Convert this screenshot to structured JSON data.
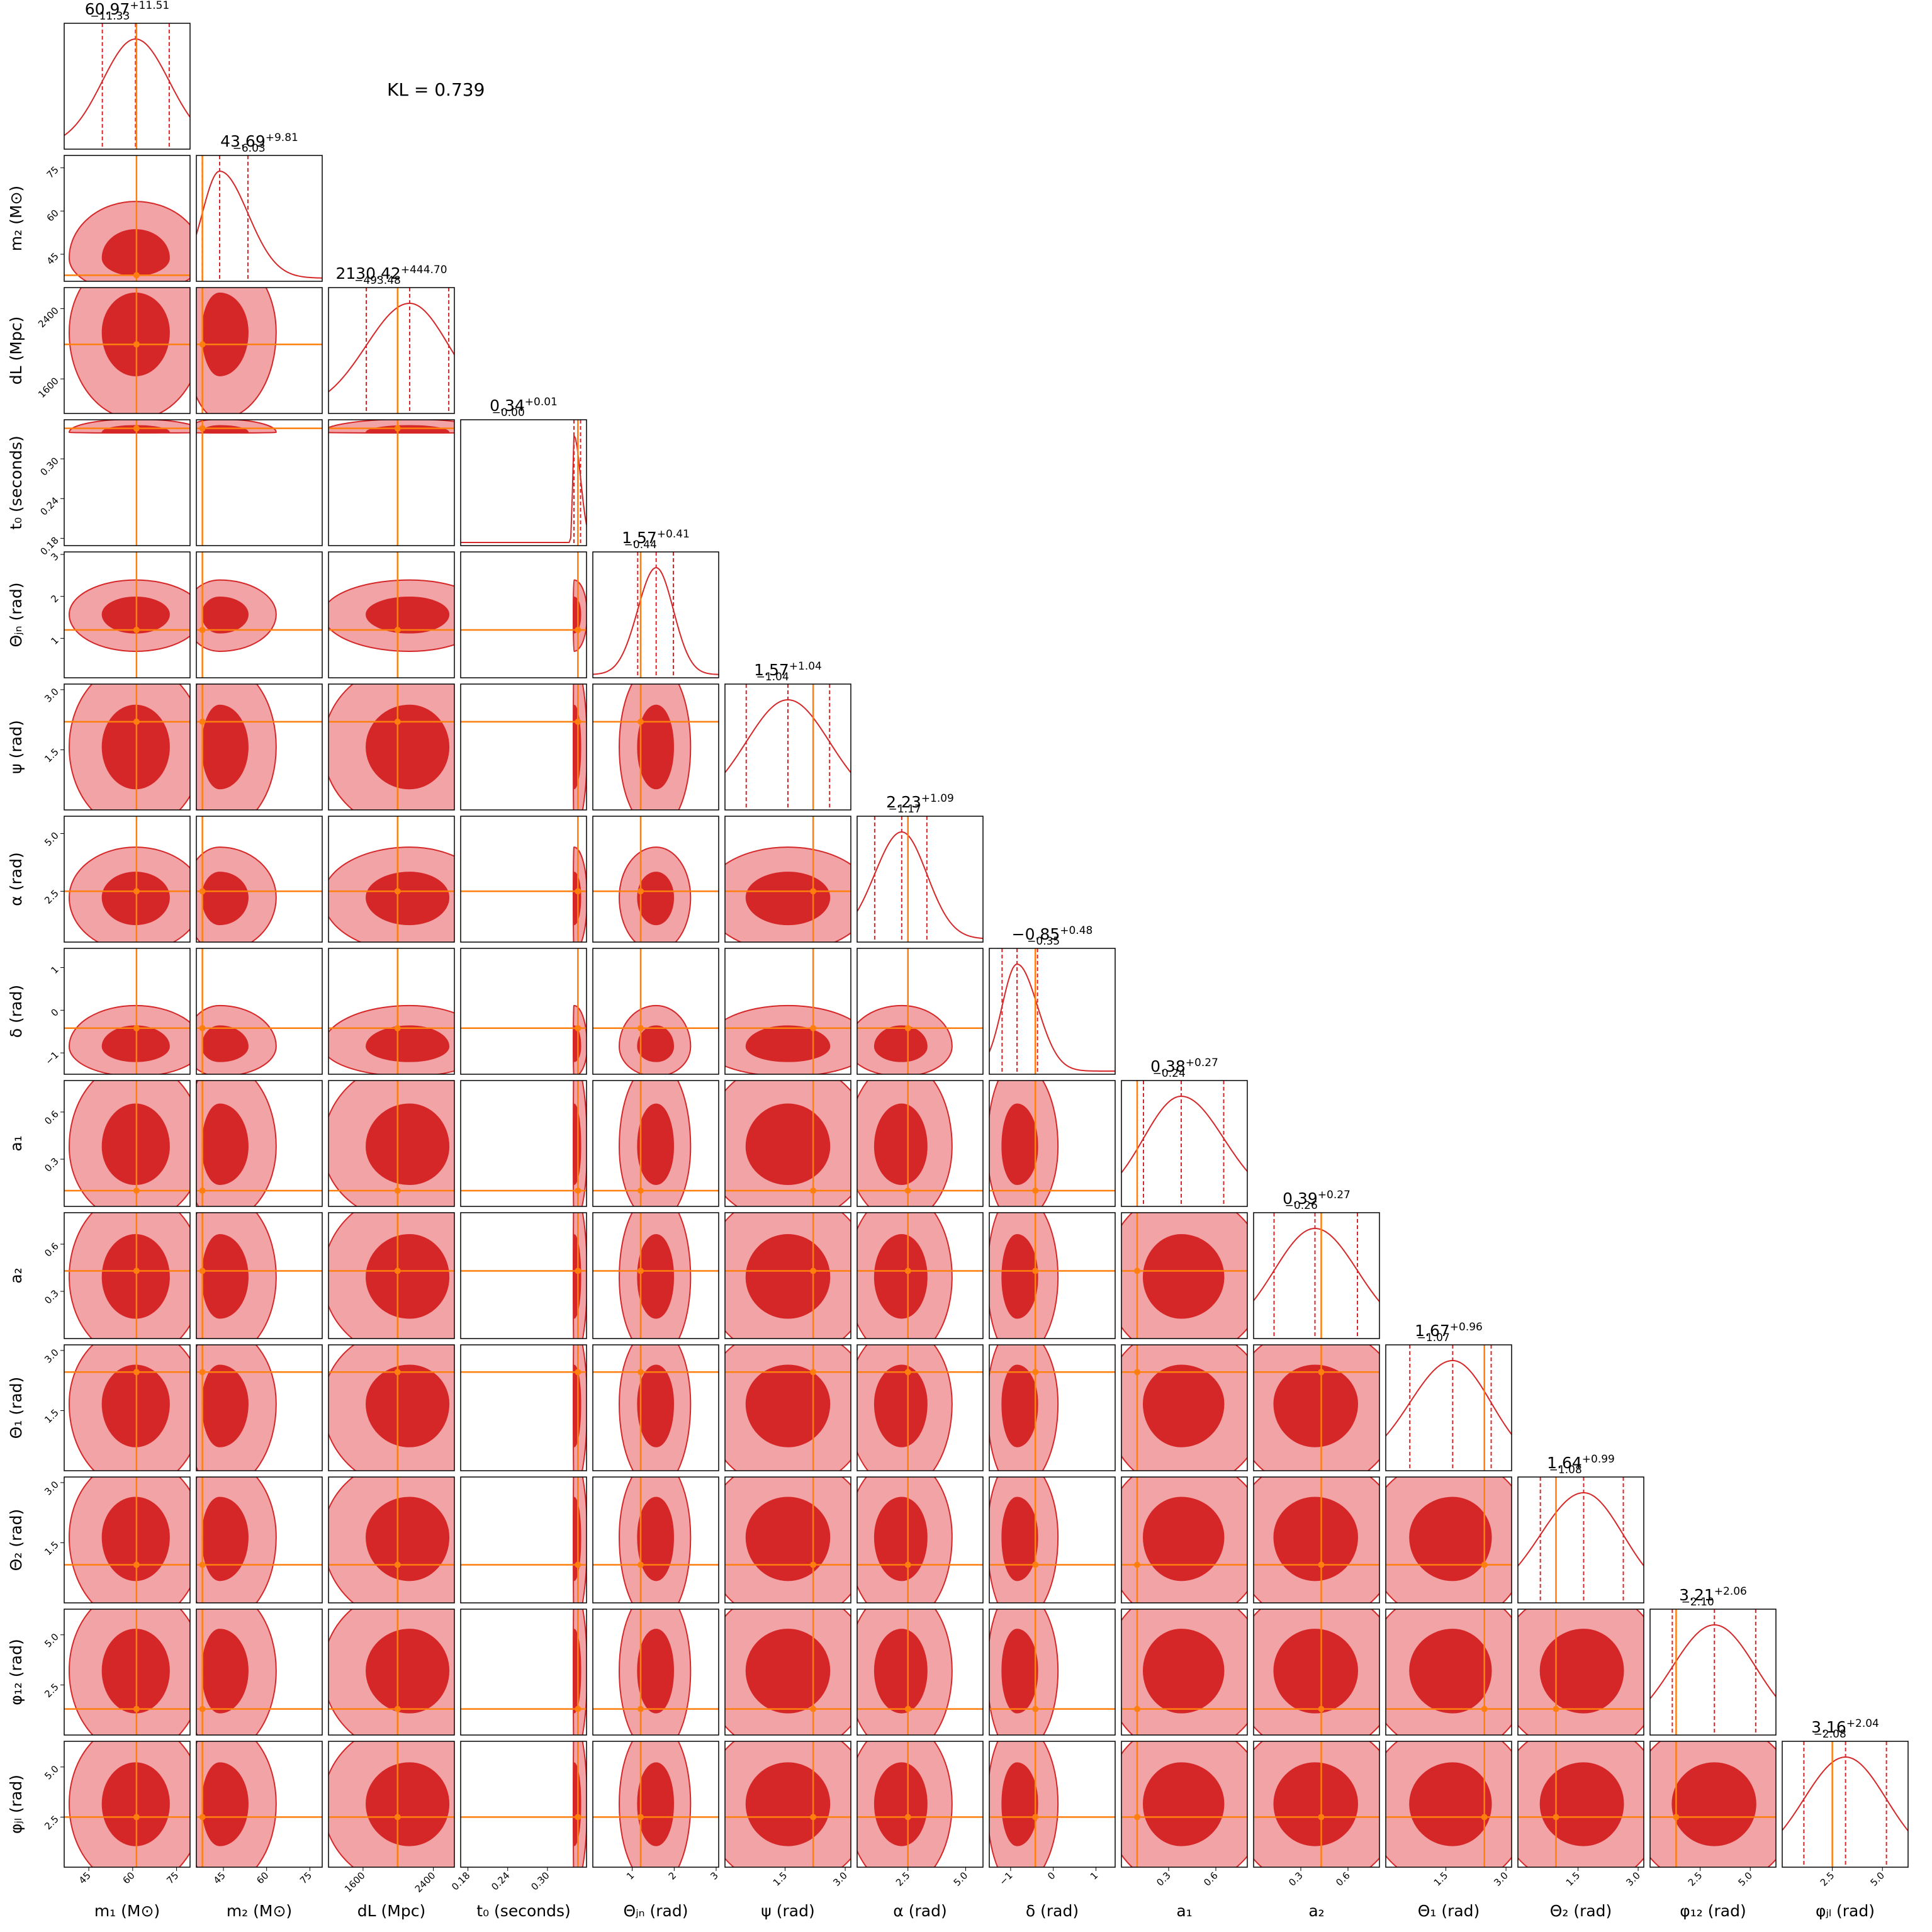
{
  "chart_data": {
    "type": "corner",
    "annotation": "KL = 0.739",
    "colors": {
      "posterior": "#d62728",
      "posterior_outer": "#f2a3a5",
      "truth": "#ff7f0e"
    },
    "parameters": [
      {
        "label": "m₁ (M⊙)",
        "lim": [
          36.6,
          79.6
        ],
        "ticks": [
          45,
          60,
          75
        ],
        "truth": 61.3,
        "median": {
          "value": 60.97,
          "label": "60.97"
        },
        "upper": {
          "value": 11.51,
          "label": "+11.51"
        },
        "lower": {
          "value": 11.33,
          "label": "−11.33"
        }
      },
      {
        "label": "m₂ (M⊙)",
        "lim": [
          35.6,
          79.3
        ],
        "ticks": [
          45,
          60,
          75
        ],
        "truth": 37.7,
        "median": {
          "value": 43.69,
          "label": "43.69"
        },
        "upper": {
          "value": 9.81,
          "label": "+9.81"
        },
        "lower": {
          "value": 6.03,
          "label": "−6.03"
        }
      },
      {
        "label": "dL (Mpc)",
        "lim": [
          1207,
          2639
        ],
        "ticks": [
          1600,
          2400
        ],
        "truth": 1993,
        "median": {
          "value": 2130.42,
          "label": "2130.42"
        },
        "upper": {
          "value": 444.7,
          "label": "+444.70"
        },
        "lower": {
          "value": 493.48,
          "label": "−493.48"
        }
      },
      {
        "label": "t₀ (seconds)",
        "lim": [
          0.169,
          0.359
        ],
        "ticks": [
          0.18,
          0.24,
          {
            "value": 0.3,
            "label": "0.30"
          }
        ],
        "truth": 0.346,
        "median": {
          "value": 0.34,
          "label": "0.34"
        },
        "upper": {
          "value": 0.01,
          "label": "+0.01"
        },
        "lower": {
          "value": 0,
          "label": "−0.00"
        }
      },
      {
        "label": "Θⱼₙ (rad)",
        "lim": [
          0.06,
          3.06
        ],
        "ticks": [
          1,
          2,
          3
        ],
        "truth": 1.2,
        "median": {
          "value": 1.57,
          "label": "1.57"
        },
        "upper": {
          "value": 0.41,
          "label": "+0.41"
        },
        "lower": {
          "value": 0.44,
          "label": "−0.44"
        }
      },
      {
        "label": "ψ (rad)",
        "lim": [
          0,
          3.14
        ],
        "ticks": [
          1.5,
          {
            "value": 3,
            "label": "3.0"
          }
        ],
        "truth": 2.2,
        "median": {
          "value": 1.57,
          "label": "1.57"
        },
        "upper": {
          "value": 1.04,
          "label": "+1.04"
        },
        "lower": {
          "value": 1.04,
          "label": "−1.04"
        }
      },
      {
        "label": "α (rad)",
        "lim": [
          0.3,
          5.75
        ],
        "ticks": [
          2.5,
          {
            "value": 5,
            "label": "5.0"
          }
        ],
        "truth": 2.5,
        "median": {
          "value": 2.23,
          "label": "2.23"
        },
        "upper": {
          "value": 1.09,
          "label": "+1.09"
        },
        "lower": {
          "value": 1.17,
          "label": "−1.17"
        }
      },
      {
        "label": "δ (rad)",
        "lim": [
          -1.5,
          1.45
        ],
        "ticks": [
          {
            "value": -1,
            "label": "−1"
          },
          0,
          1
        ],
        "truth": -0.42,
        "median": {
          "value": -0.85,
          "label": "−0.85"
        },
        "upper": {
          "value": 0.48,
          "label": "+0.48"
        },
        "lower": {
          "value": 0.35,
          "label": "−0.35"
        }
      },
      {
        "label": "a₁",
        "lim": [
          0,
          0.8
        ],
        "ticks": [
          0.3,
          0.6
        ],
        "truth": 0.1,
        "median": {
          "value": 0.38,
          "label": "0.38"
        },
        "upper": {
          "value": 0.27,
          "label": "+0.27"
        },
        "lower": {
          "value": 0.24,
          "label": "−0.24"
        }
      },
      {
        "label": "a₂",
        "lim": [
          0,
          0.8
        ],
        "ticks": [
          0.3,
          0.6
        ],
        "truth": 0.43,
        "median": {
          "value": 0.39,
          "label": "0.39"
        },
        "upper": {
          "value": 0.27,
          "label": "+0.27"
        },
        "lower": {
          "value": 0.26,
          "label": "−0.26"
        }
      },
      {
        "label": "Θ₁ (rad)",
        "lim": [
          0,
          3.14
        ],
        "ticks": [
          1.5,
          {
            "value": 3,
            "label": "3.0"
          }
        ],
        "truth": 2.46,
        "median": {
          "value": 1.67,
          "label": "1.67"
        },
        "upper": {
          "value": 0.96,
          "label": "+0.96"
        },
        "lower": {
          "value": 1.07,
          "label": "−1.07"
        }
      },
      {
        "label": "Θ₂ (rad)",
        "lim": [
          0,
          3.14
        ],
        "ticks": [
          1.5,
          {
            "value": 3,
            "label": "3.0"
          }
        ],
        "truth": 0.95,
        "median": {
          "value": 1.64,
          "label": "1.64"
        },
        "upper": {
          "value": 0.99,
          "label": "+0.99"
        },
        "lower": {
          "value": 1.08,
          "label": "−1.08"
        }
      },
      {
        "label": "φ₁₂ (rad)",
        "lim": [
          0,
          6.28
        ],
        "ticks": [
          2.5,
          {
            "value": 5,
            "label": "5.0"
          }
        ],
        "truth": 1.3,
        "median": {
          "value": 3.21,
          "label": "3.21"
        },
        "upper": {
          "value": 2.06,
          "label": "+2.06"
        },
        "lower": {
          "value": 2.1,
          "label": "−2.10"
        }
      },
      {
        "label": "φⱼₗ (rad)",
        "lim": [
          0,
          6.28
        ],
        "ticks": [
          2.5,
          {
            "value": 5,
            "label": "5.0"
          }
        ],
        "truth": 2.5,
        "median": {
          "value": 3.16,
          "label": "3.16"
        },
        "upper": {
          "value": 2.04,
          "label": "+2.04"
        },
        "lower": {
          "value": 2.08,
          "label": "−2.08"
        }
      }
    ]
  }
}
